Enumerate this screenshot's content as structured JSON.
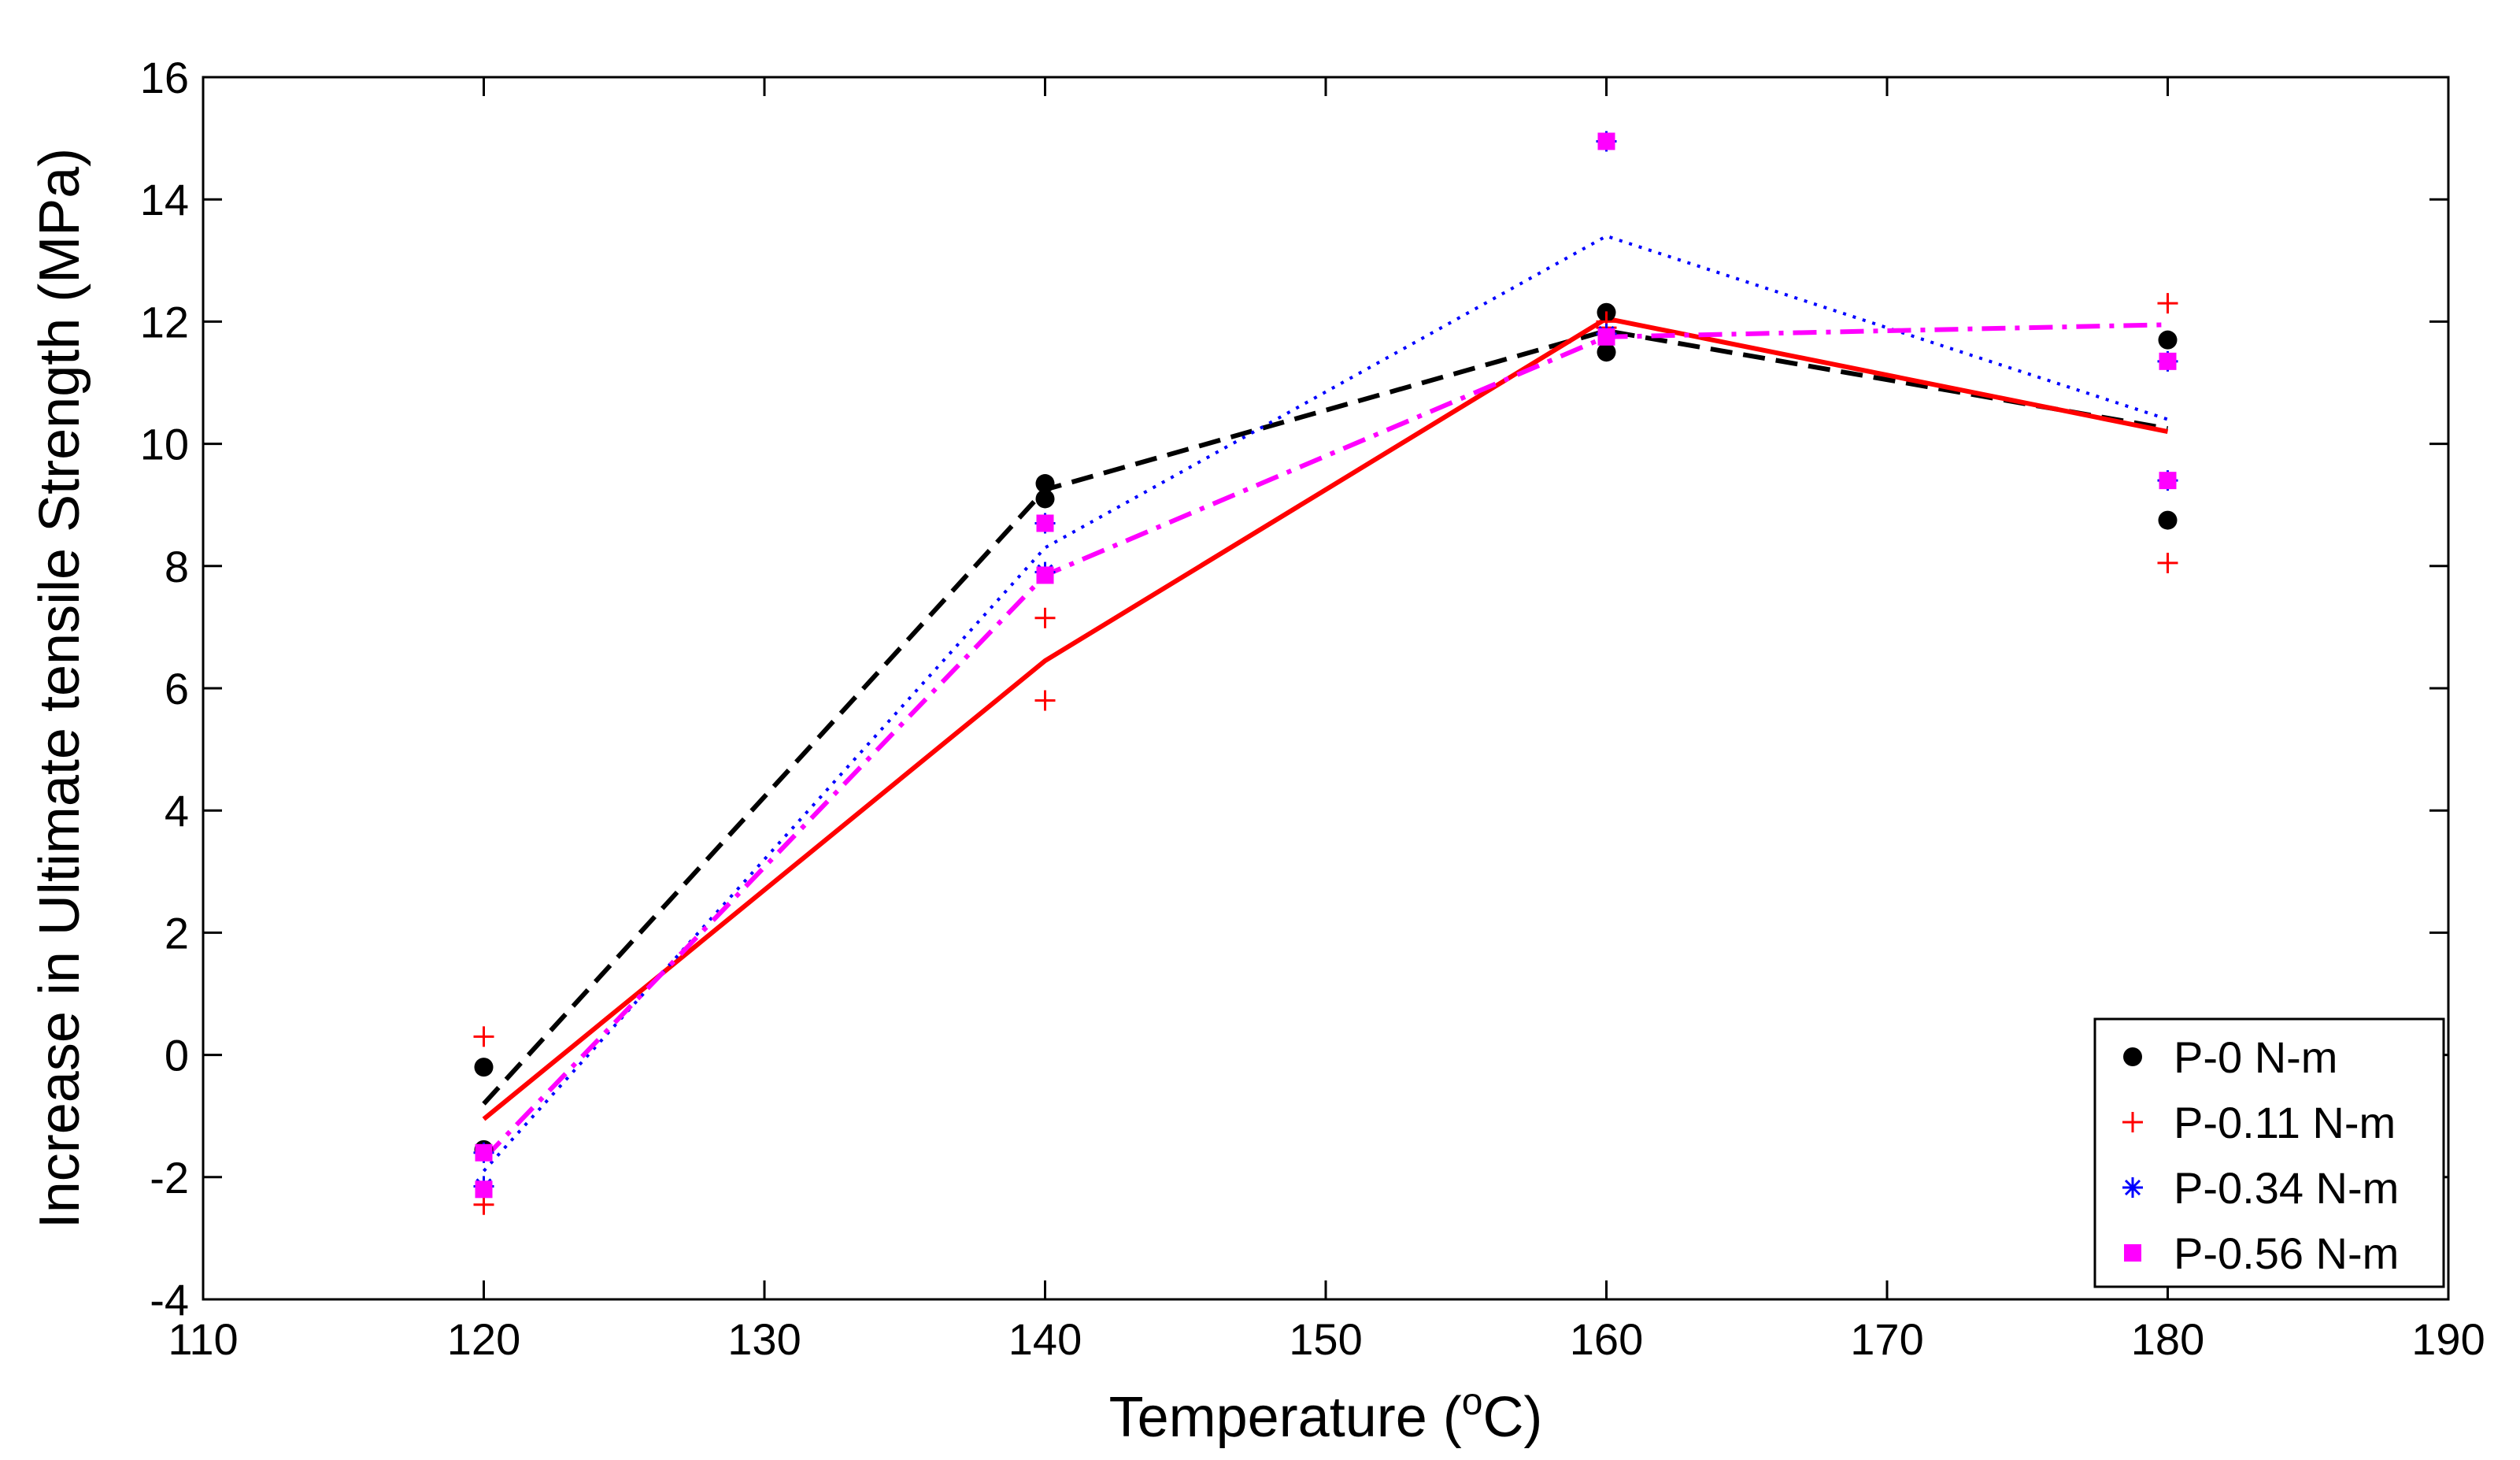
{
  "chart_data": {
    "type": "line",
    "title": "",
    "xlabel_main": "Temperature (",
    "xlabel_sup": "o",
    "xlabel_end": "C)",
    "ylabel": "Increase in Ultimate tensile Strength (MPa)",
    "xlim": [
      110,
      190
    ],
    "ylim": [
      -4,
      16
    ],
    "xticks": [
      110,
      120,
      130,
      140,
      150,
      160,
      170,
      180,
      190
    ],
    "yticks": [
      -4,
      -2,
      0,
      2,
      4,
      6,
      8,
      10,
      12,
      14,
      16
    ],
    "grid": false,
    "legend_position": "bottom-right",
    "series": [
      {
        "name": "P-0 N-m",
        "color": "#000000",
        "marker": "dot",
        "line_style": "dashed",
        "points": [
          {
            "x": 120,
            "y": -0.2
          },
          {
            "x": 120,
            "y": -1.55
          },
          {
            "x": 140,
            "y": 9.35
          },
          {
            "x": 140,
            "y": 9.1
          },
          {
            "x": 160,
            "y": 12.15
          },
          {
            "x": 160,
            "y": 11.5
          },
          {
            "x": 180,
            "y": 11.7
          },
          {
            "x": 180,
            "y": 8.75
          }
        ],
        "fit_line": [
          {
            "x": 120,
            "y": -0.8
          },
          {
            "x": 140,
            "y": 9.25
          },
          {
            "x": 160,
            "y": 11.85
          },
          {
            "x": 180,
            "y": 10.25
          }
        ]
      },
      {
        "name": "P-0.11 N-m",
        "color": "#ff0000",
        "marker": "plus",
        "line_style": "solid",
        "points": [
          {
            "x": 120,
            "y": 0.3
          },
          {
            "x": 120,
            "y": -2.45
          },
          {
            "x": 140,
            "y": 7.15
          },
          {
            "x": 140,
            "y": 5.8
          },
          {
            "x": 160,
            "y": 12.0
          },
          {
            "x": 160,
            "y": 11.9
          },
          {
            "x": 180,
            "y": 12.3
          },
          {
            "x": 180,
            "y": 8.05
          }
        ],
        "fit_line": [
          {
            "x": 120,
            "y": -1.05
          },
          {
            "x": 140,
            "y": 6.45
          },
          {
            "x": 160,
            "y": 12.05
          },
          {
            "x": 180,
            "y": 10.2
          }
        ]
      },
      {
        "name": "P-0.34 N-m",
        "color": "#0000ff",
        "marker": "asterisk",
        "line_style": "dotted",
        "points": [
          {
            "x": 120,
            "y": -1.6
          },
          {
            "x": 120,
            "y": -2.15
          },
          {
            "x": 140,
            "y": 8.7
          },
          {
            "x": 140,
            "y": 7.9
          },
          {
            "x": 160,
            "y": 14.95
          },
          {
            "x": 160,
            "y": 11.8
          },
          {
            "x": 180,
            "y": 11.35
          },
          {
            "x": 180,
            "y": 9.4
          }
        ],
        "fit_line": [
          {
            "x": 120,
            "y": -1.9
          },
          {
            "x": 140,
            "y": 8.3
          },
          {
            "x": 160,
            "y": 13.4
          },
          {
            "x": 180,
            "y": 10.4
          }
        ]
      },
      {
        "name": "P-0.56 N-m",
        "color": "#ff00ff",
        "marker": "square",
        "line_style": "dashdot",
        "points": [
          {
            "x": 120,
            "y": -1.6
          },
          {
            "x": 120,
            "y": -2.2
          },
          {
            "x": 140,
            "y": 8.7
          },
          {
            "x": 140,
            "y": 7.85
          },
          {
            "x": 160,
            "y": 14.95
          },
          {
            "x": 160,
            "y": 11.75
          },
          {
            "x": 180,
            "y": 11.35
          },
          {
            "x": 180,
            "y": 9.4
          }
        ],
        "fit_line": [
          {
            "x": 120,
            "y": -1.7
          },
          {
            "x": 140,
            "y": 7.85
          },
          {
            "x": 160,
            "y": 11.75
          },
          {
            "x": 180,
            "y": 11.95
          }
        ]
      }
    ]
  }
}
